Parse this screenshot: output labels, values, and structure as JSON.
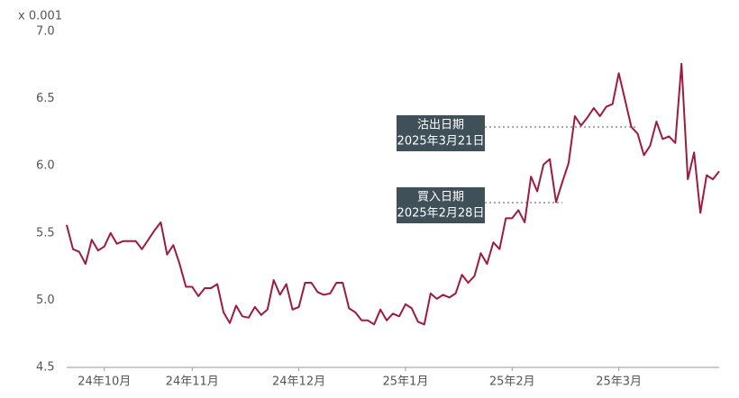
{
  "chart_data": {
    "type": "line",
    "y_unit_label": "x 0.001",
    "categories": [
      null,
      null,
      null,
      null,
      null,
      null,
      "24年10月",
      null,
      null,
      null,
      null,
      null,
      null,
      null,
      null,
      null,
      null,
      null,
      null,
      null,
      "24年11月",
      null,
      null,
      null,
      null,
      null,
      null,
      null,
      null,
      null,
      null,
      null,
      null,
      null,
      null,
      null,
      null,
      "24年12月",
      null,
      null,
      null,
      null,
      null,
      null,
      null,
      null,
      null,
      null,
      null,
      null,
      null,
      null,
      null,
      null,
      "25年1月",
      null,
      null,
      null,
      null,
      null,
      null,
      null,
      null,
      null,
      null,
      null,
      null,
      null,
      null,
      null,
      null,
      "25年2月",
      null,
      null,
      null,
      null,
      null,
      null,
      null,
      null,
      null,
      null,
      null,
      null,
      null,
      null,
      null,
      null,
      "25年3月",
      null,
      null,
      null,
      null,
      null,
      null,
      null,
      null,
      null,
      null,
      null,
      null,
      null,
      null,
      null,
      null
    ],
    "series": [
      {
        "name": null,
        "color": "#9e1b3f",
        "values": [
          5.56,
          5.38,
          5.36,
          5.27,
          5.45,
          5.37,
          5.4,
          5.5,
          5.42,
          5.44,
          5.44,
          5.44,
          5.38,
          5.45,
          5.52,
          5.58,
          5.34,
          5.41,
          5.27,
          5.1,
          5.1,
          5.03,
          5.09,
          5.09,
          5.12,
          4.91,
          4.83,
          4.96,
          4.88,
          4.87,
          4.95,
          4.89,
          4.93,
          5.15,
          5.04,
          5.12,
          4.93,
          4.95,
          5.13,
          5.13,
          5.06,
          5.04,
          5.05,
          5.13,
          5.13,
          4.94,
          4.91,
          4.85,
          4.85,
          4.82,
          4.93,
          4.85,
          4.9,
          4.88,
          4.97,
          4.94,
          4.84,
          4.82,
          5.05,
          5.01,
          5.04,
          5.02,
          5.05,
          5.19,
          5.13,
          5.18,
          5.35,
          5.27,
          5.43,
          5.38,
          5.61,
          5.61,
          5.67,
          5.58,
          5.92,
          5.81,
          6.01,
          6.05,
          5.73,
          5.88,
          6.02,
          6.37,
          6.3,
          6.36,
          6.43,
          6.37,
          6.44,
          6.46,
          6.69,
          6.49,
          6.29,
          6.24,
          6.08,
          6.15,
          6.33,
          6.2,
          6.22,
          6.17,
          6.76,
          5.9,
          6.1,
          5.65,
          5.93,
          5.9,
          5.96
        ]
      }
    ],
    "ylim": [
      4.5,
      7.0
    ],
    "yticks": [
      {
        "value": 7.0,
        "label": "7.0"
      },
      6.5,
      {
        "value": 6.0,
        "label": "6.0"
      },
      5.5,
      {
        "value": 5.0,
        "label": "5.0"
      },
      4.5
    ],
    "grid": false,
    "annotations": [
      {
        "lines": [
          "沽出日期",
          "2025年3月21日"
        ]
      },
      {
        "lines": [
          "買入日期",
          "2025年2月28日"
        ]
      }
    ]
  }
}
